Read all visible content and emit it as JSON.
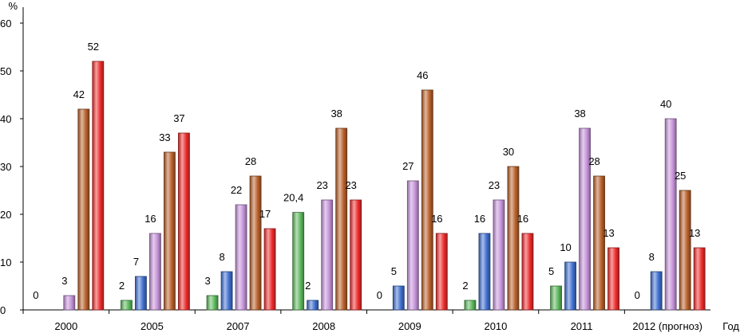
{
  "chart_data": {
    "type": "bar",
    "title": "",
    "xlabel": "Год",
    "ylabel": "%",
    "ylim": [
      0,
      60
    ],
    "yticks": [
      "0",
      "10",
      "20",
      "30",
      "40",
      "50",
      "60"
    ],
    "grid": false,
    "legend": "none",
    "categories": [
      "2000",
      "2005",
      "2007",
      "2008",
      "2009",
      "2010",
      "2011",
      "2012 (прогноз)"
    ],
    "series": [
      {
        "color": "#5cb85c",
        "values": [
          0,
          2,
          3,
          20.4,
          0,
          2,
          5,
          0
        ],
        "labels": [
          "0",
          "2",
          "3",
          "20,4",
          "0",
          "2",
          "5",
          "0"
        ]
      },
      {
        "color": "#3f6fd0",
        "values": [
          0,
          7,
          8,
          2,
          5,
          16,
          10,
          8
        ],
        "labels": [
          "",
          "7",
          "8",
          "2",
          "5",
          "16",
          "10",
          "8"
        ]
      },
      {
        "color": "#c592d9",
        "values": [
          3,
          16,
          22,
          23,
          27,
          23,
          38,
          40
        ],
        "labels": [
          "3",
          "16",
          "22",
          "23",
          "27",
          "23",
          "38",
          "40"
        ]
      },
      {
        "color": "#b8602a",
        "values": [
          42,
          33,
          28,
          38,
          46,
          30,
          28,
          25
        ],
        "labels": [
          "42",
          "33",
          "28",
          "38",
          "46",
          "30",
          "28",
          "25"
        ]
      },
      {
        "color": "#ee2c2c",
        "values": [
          52,
          37,
          17,
          23,
          16,
          16,
          13,
          13
        ],
        "labels": [
          "52",
          "37",
          "17",
          "23",
          "16",
          "16",
          "13",
          "13"
        ]
      }
    ]
  }
}
